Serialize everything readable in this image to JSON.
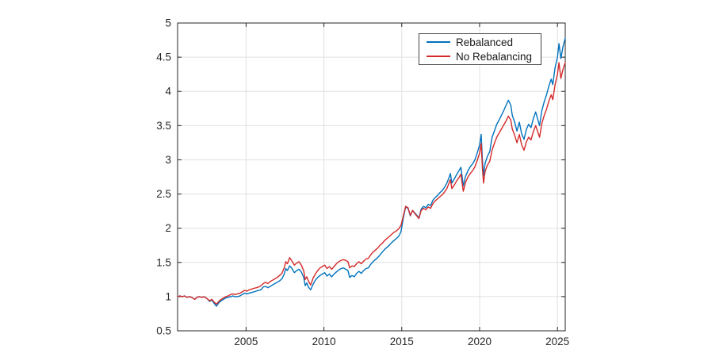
{
  "chart_data": {
    "type": "line",
    "title": "",
    "xlabel": "",
    "ylabel": "",
    "grid": true,
    "xlim": [
      2000.6,
      2025.5
    ],
    "ylim": [
      0.5,
      5
    ],
    "axis_color": "#262626",
    "grid_color": "#e0e0e0",
    "background_color": "#ffffff",
    "x_ticks": {
      "values": [
        2005,
        2010,
        2015,
        2020,
        2025
      ],
      "labels": [
        "2005",
        "2010",
        "2015",
        "2020",
        "2025"
      ]
    },
    "y_ticks": {
      "values": [
        0.5,
        1,
        1.5,
        2,
        2.5,
        3,
        3.5,
        4,
        4.5,
        5
      ],
      "labels": [
        "0.5",
        "1",
        "1.5",
        "2",
        "2.5",
        "3",
        "3.5",
        "4",
        "4.5",
        "5"
      ]
    },
    "legend": {
      "position": "top-right",
      "border_color": "#444444"
    },
    "x": [
      2000.6,
      2000.75,
      2000.9,
      2001.05,
      2001.2,
      2001.35,
      2001.5,
      2001.7,
      2001.85,
      2002,
      2002.15,
      2002.3,
      2002.5,
      2002.65,
      2002.8,
      2002.95,
      2003.1,
      2003.25,
      2003.4,
      2003.55,
      2003.7,
      2003.85,
      2004,
      2004.15,
      2004.3,
      2004.45,
      2004.6,
      2004.75,
      2004.9,
      2005.05,
      2005.2,
      2005.35,
      2005.5,
      2005.65,
      2005.8,
      2005.95,
      2006.1,
      2006.25,
      2006.4,
      2006.55,
      2006.7,
      2006.85,
      2007,
      2007.15,
      2007.3,
      2007.45,
      2007.55,
      2007.65,
      2007.8,
      2007.95,
      2008.1,
      2008.25,
      2008.4,
      2008.55,
      2008.7,
      2008.8,
      2008.9,
      2009,
      2009.15,
      2009.3,
      2009.45,
      2009.6,
      2009.75,
      2009.9,
      2010.05,
      2010.2,
      2010.35,
      2010.5,
      2010.65,
      2010.8,
      2010.95,
      2011.1,
      2011.25,
      2011.4,
      2011.55,
      2011.65,
      2011.8,
      2011.95,
      2012.1,
      2012.25,
      2012.4,
      2012.55,
      2012.7,
      2012.85,
      2013,
      2013.15,
      2013.3,
      2013.45,
      2013.6,
      2013.75,
      2013.9,
      2014.05,
      2014.2,
      2014.35,
      2014.5,
      2014.65,
      2014.8,
      2014.95,
      2015.1,
      2015.25,
      2015.4,
      2015.55,
      2015.7,
      2015.85,
      2016,
      2016.1,
      2016.25,
      2016.4,
      2016.55,
      2016.7,
      2016.85,
      2017,
      2017.15,
      2017.3,
      2017.45,
      2017.6,
      2017.75,
      2017.9,
      2018.05,
      2018.12,
      2018.22,
      2018.37,
      2018.52,
      2018.67,
      2018.8,
      2018.95,
      2019.1,
      2019.25,
      2019.4,
      2019.55,
      2019.7,
      2019.85,
      2020,
      2020.1,
      2020.18,
      2020.25,
      2020.35,
      2020.5,
      2020.65,
      2020.8,
      2020.95,
      2021.1,
      2021.25,
      2021.4,
      2021.55,
      2021.7,
      2021.85,
      2022,
      2022.1,
      2022.25,
      2022.4,
      2022.55,
      2022.7,
      2022.85,
      2023,
      2023.15,
      2023.3,
      2023.45,
      2023.6,
      2023.75,
      2023.85,
      2024,
      2024.15,
      2024.3,
      2024.45,
      2024.6,
      2024.7,
      2024.85,
      2025,
      2025.1,
      2025.22,
      2025.35,
      2025.5
    ],
    "series": [
      {
        "name": "Rebalanced",
        "color": "#0072BD",
        "values": [
          1.0,
          1.01,
          1.0,
          1.01,
          0.99,
          1.0,
          0.99,
          0.96,
          0.99,
          1.0,
          0.99,
          1.0,
          0.97,
          0.93,
          0.95,
          0.9,
          0.86,
          0.91,
          0.94,
          0.96,
          0.98,
          0.99,
          1.0,
          1.01,
          1.0,
          1.0,
          1.01,
          1.03,
          1.05,
          1.04,
          1.05,
          1.06,
          1.07,
          1.08,
          1.09,
          1.1,
          1.14,
          1.15,
          1.13,
          1.15,
          1.17,
          1.19,
          1.21,
          1.23,
          1.26,
          1.33,
          1.41,
          1.38,
          1.45,
          1.41,
          1.35,
          1.38,
          1.4,
          1.36,
          1.28,
          1.16,
          1.2,
          1.14,
          1.1,
          1.18,
          1.24,
          1.28,
          1.31,
          1.33,
          1.35,
          1.3,
          1.33,
          1.29,
          1.33,
          1.36,
          1.39,
          1.41,
          1.42,
          1.4,
          1.38,
          1.28,
          1.31,
          1.29,
          1.34,
          1.37,
          1.34,
          1.38,
          1.41,
          1.42,
          1.47,
          1.51,
          1.54,
          1.57,
          1.61,
          1.65,
          1.69,
          1.72,
          1.75,
          1.79,
          1.82,
          1.85,
          1.88,
          1.95,
          2.15,
          2.31,
          2.29,
          2.18,
          2.26,
          2.22,
          2.18,
          2.15,
          2.28,
          2.32,
          2.3,
          2.35,
          2.33,
          2.41,
          2.45,
          2.48,
          2.52,
          2.55,
          2.6,
          2.66,
          2.75,
          2.8,
          2.66,
          2.72,
          2.78,
          2.84,
          2.89,
          2.62,
          2.76,
          2.84,
          2.9,
          2.94,
          3.0,
          3.1,
          3.22,
          3.37,
          3.0,
          2.77,
          2.95,
          3.05,
          3.12,
          3.33,
          3.42,
          3.52,
          3.58,
          3.65,
          3.72,
          3.8,
          3.87,
          3.8,
          3.65,
          3.55,
          3.42,
          3.55,
          3.38,
          3.3,
          3.44,
          3.52,
          3.47,
          3.6,
          3.7,
          3.58,
          3.5,
          3.72,
          3.85,
          3.95,
          4.08,
          4.18,
          4.1,
          4.35,
          4.5,
          4.7,
          4.48,
          4.65,
          4.78
        ]
      },
      {
        "name": "No Rebalancing",
        "color": "#D42A2A",
        "values": [
          1.0,
          1.01,
          1.0,
          1.01,
          0.99,
          1.0,
          0.99,
          0.96,
          0.99,
          1.0,
          0.99,
          1.0,
          0.97,
          0.94,
          0.96,
          0.92,
          0.89,
          0.93,
          0.96,
          0.98,
          1.0,
          1.01,
          1.03,
          1.04,
          1.03,
          1.04,
          1.05,
          1.07,
          1.09,
          1.08,
          1.1,
          1.11,
          1.12,
          1.13,
          1.14,
          1.16,
          1.19,
          1.21,
          1.19,
          1.22,
          1.24,
          1.26,
          1.28,
          1.31,
          1.34,
          1.42,
          1.51,
          1.48,
          1.57,
          1.52,
          1.46,
          1.49,
          1.51,
          1.46,
          1.38,
          1.25,
          1.29,
          1.23,
          1.17,
          1.27,
          1.33,
          1.38,
          1.42,
          1.44,
          1.46,
          1.41,
          1.44,
          1.4,
          1.44,
          1.48,
          1.51,
          1.53,
          1.54,
          1.53,
          1.51,
          1.42,
          1.45,
          1.44,
          1.48,
          1.51,
          1.48,
          1.52,
          1.55,
          1.56,
          1.61,
          1.65,
          1.68,
          1.71,
          1.75,
          1.78,
          1.82,
          1.85,
          1.88,
          1.91,
          1.94,
          1.96,
          1.99,
          2.04,
          2.18,
          2.32,
          2.3,
          2.19,
          2.26,
          2.21,
          2.17,
          2.14,
          2.26,
          2.29,
          2.27,
          2.31,
          2.29,
          2.36,
          2.4,
          2.43,
          2.46,
          2.49,
          2.53,
          2.58,
          2.67,
          2.71,
          2.58,
          2.63,
          2.69,
          2.74,
          2.79,
          2.54,
          2.67,
          2.75,
          2.8,
          2.84,
          2.9,
          2.99,
          3.1,
          3.24,
          2.88,
          2.66,
          2.83,
          2.92,
          2.98,
          3.14,
          3.24,
          3.33,
          3.39,
          3.45,
          3.51,
          3.57,
          3.64,
          3.58,
          3.45,
          3.36,
          3.25,
          3.37,
          3.22,
          3.14,
          3.26,
          3.33,
          3.29,
          3.41,
          3.5,
          3.4,
          3.33,
          3.53,
          3.65,
          3.74,
          3.86,
          3.95,
          3.88,
          4.1,
          4.25,
          4.42,
          4.19,
          4.32,
          4.42
        ]
      }
    ]
  }
}
